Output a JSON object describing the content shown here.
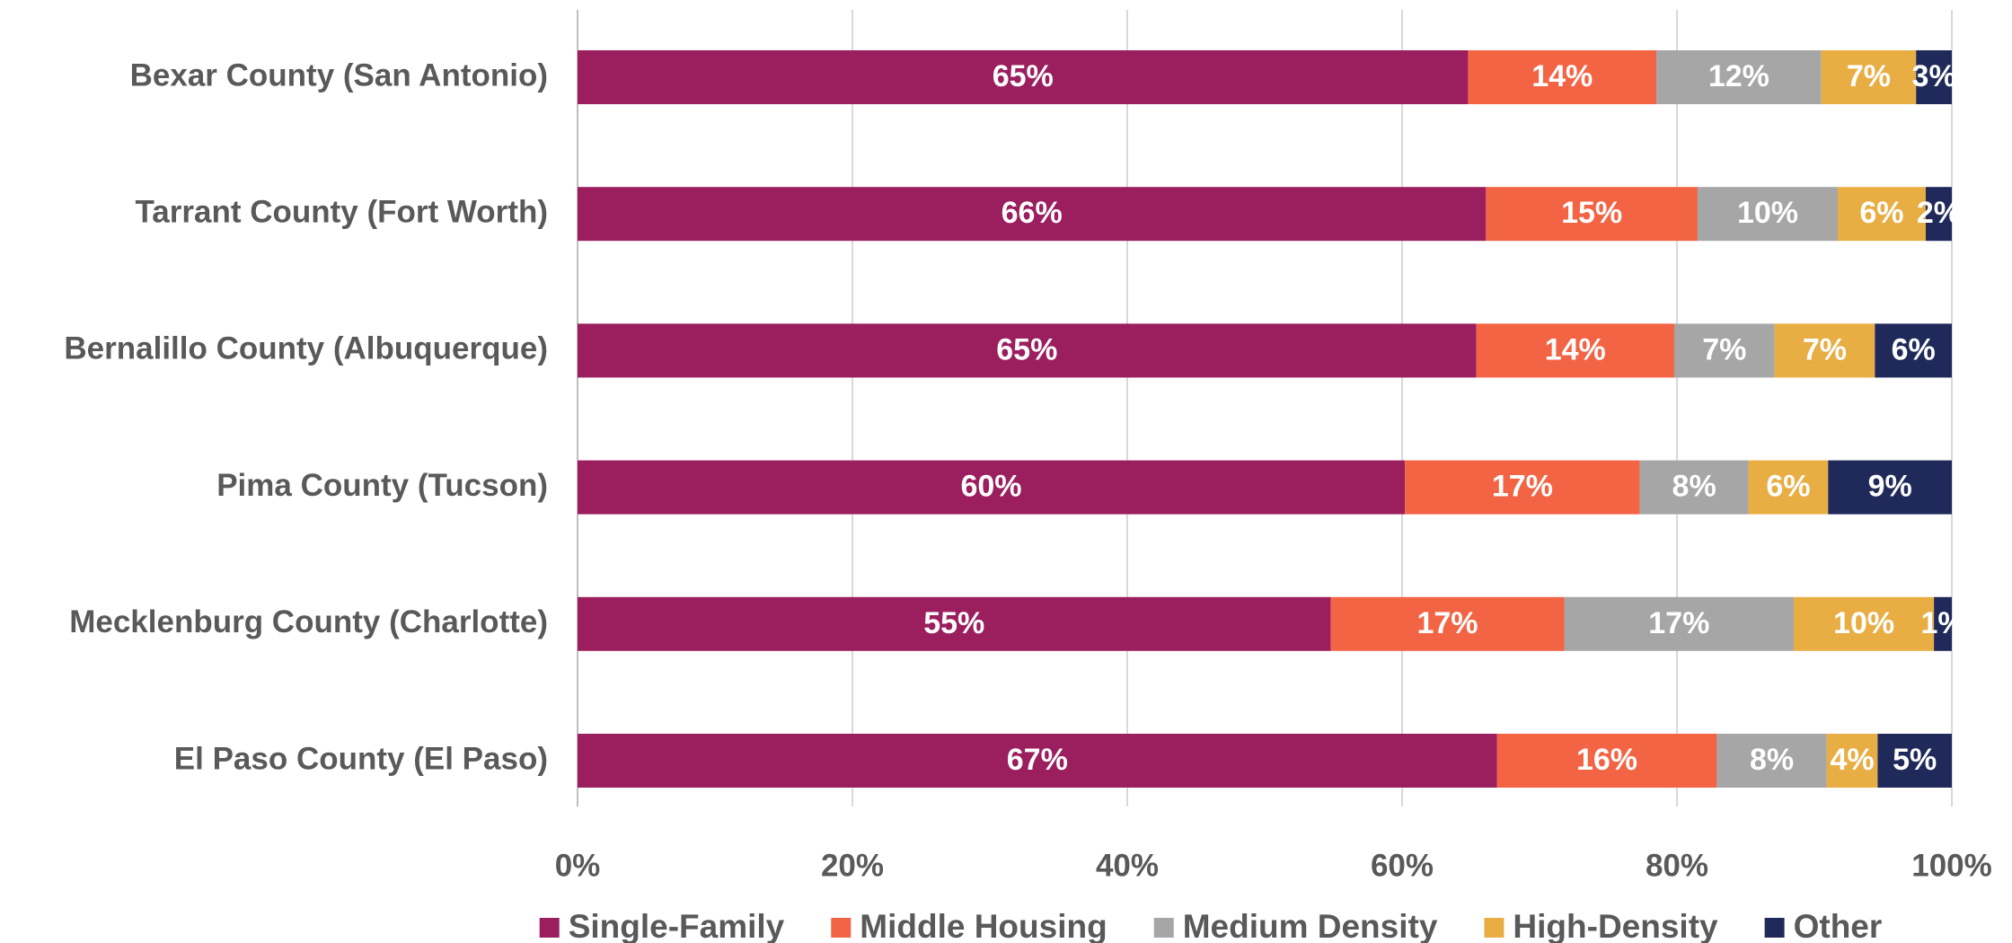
{
  "chart_data": {
    "type": "stacked_bar_horizontal",
    "categories": [
      "Bexar County (San Antonio)",
      "Tarrant County (Fort Worth)",
      "Bernalillo County (Albuquerque)",
      "Pima County (Tucson)",
      "Mecklenburg County (Charlotte)",
      "El Paso County (El Paso)"
    ],
    "series": [
      {
        "name": "Single-Family",
        "color": "#9b1f5f",
        "values": [
          64.8,
          66.1,
          65.4,
          60.2,
          54.8,
          66.9
        ],
        "value_labels": [
          "65%",
          "66%",
          "65%",
          "60%",
          "55%",
          "67%"
        ]
      },
      {
        "name": "Middle Housing",
        "color": "#f26444",
        "values": [
          13.7,
          15.4,
          14.4,
          17.1,
          17.0,
          16.0
        ],
        "value_labels": [
          "14%",
          "15%",
          "14%",
          "17%",
          "17%",
          "16%"
        ]
      },
      {
        "name": "Medium Density",
        "color": "#a6a6a6",
        "values": [
          12.0,
          10.2,
          7.3,
          7.9,
          16.7,
          8.0
        ],
        "value_labels": [
          "12%",
          "10%",
          "7%",
          "8%",
          "17%",
          "8%"
        ]
      },
      {
        "name": "High-Density",
        "color": "#e8ae44",
        "values": [
          6.9,
          6.4,
          7.3,
          5.8,
          10.2,
          3.7
        ],
        "value_labels": [
          "7%",
          "6%",
          "7%",
          "6%",
          "10%",
          "4%"
        ]
      },
      {
        "name": "Other",
        "color": "#1f2a5a",
        "values": [
          2.6,
          1.9,
          5.6,
          9.0,
          1.3,
          5.4
        ],
        "value_labels": [
          "3%",
          "2%",
          "6%",
          "9%",
          "1%",
          "5%"
        ]
      }
    ],
    "xlim": [
      0,
      100
    ],
    "xticks": [
      {
        "value": 0,
        "label": "0%"
      },
      {
        "value": 20,
        "label": "20%"
      },
      {
        "value": 40,
        "label": "40%"
      },
      {
        "value": 60,
        "label": "60%"
      },
      {
        "value": 80,
        "label": "80%"
      },
      {
        "value": 100,
        "label": "100%"
      }
    ],
    "grid": true,
    "legend": "bottom"
  }
}
